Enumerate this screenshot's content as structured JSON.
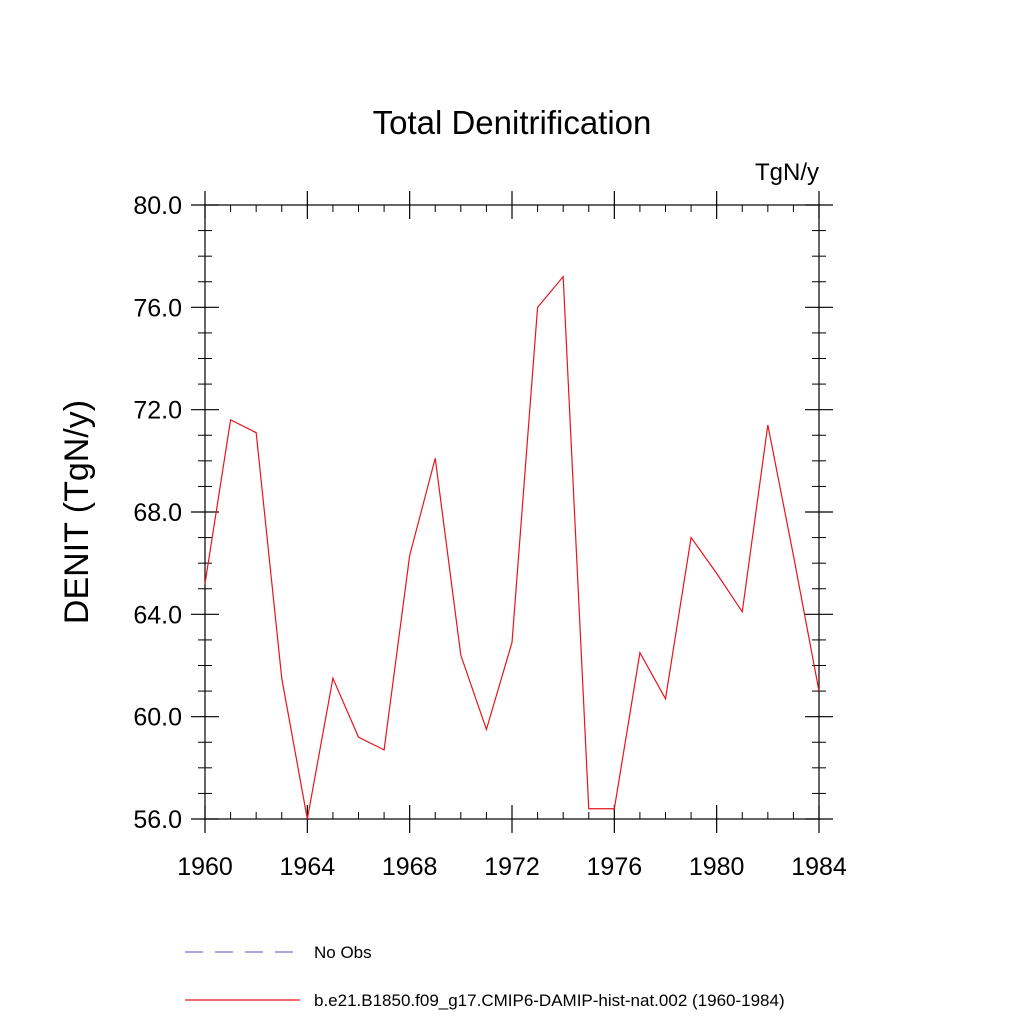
{
  "chart_data": {
    "type": "line",
    "title": "Total Denitrification",
    "units_label": "TgN/y",
    "xlabel": "",
    "ylabel": "DENIT  (TgN/y)",
    "xlim": [
      1960,
      1984
    ],
    "ylim": [
      56,
      80
    ],
    "x_ticks": [
      1960,
      1964,
      1968,
      1972,
      1976,
      1980,
      1984
    ],
    "x_tick_labels": [
      "1960",
      "1964",
      "1968",
      "1972",
      "1976",
      "1980",
      "1984"
    ],
    "y_ticks": [
      56,
      60,
      64,
      68,
      72,
      76,
      80
    ],
    "y_tick_labels": [
      "56.0",
      "60.0",
      "64.0",
      "68.0",
      "72.0",
      "76.0",
      "80.0"
    ],
    "grid": false,
    "legend_placement": "bottom",
    "series": [
      {
        "name": "No Obs",
        "color": "#7b72c8",
        "dashed": true,
        "x": [],
        "y": []
      },
      {
        "name": "b.e21.B1850.f09_g17.CMIP6-DAMIP-hist-nat.002 (1960-1984)",
        "color": "#e8141b",
        "dashed": false,
        "x": [
          1960,
          1961,
          1962,
          1963,
          1964,
          1965,
          1966,
          1967,
          1968,
          1969,
          1970,
          1971,
          1972,
          1973,
          1974,
          1975,
          1976,
          1977,
          1978,
          1979,
          1980,
          1981,
          1982,
          1983,
          1984
        ],
        "y": [
          65.2,
          71.6,
          71.1,
          61.5,
          56.0,
          61.5,
          59.2,
          58.7,
          66.3,
          70.1,
          62.4,
          59.5,
          62.9,
          76.0,
          77.2,
          56.4,
          56.4,
          62.5,
          60.7,
          67.0,
          65.6,
          64.1,
          71.4,
          66.3,
          61.0
        ]
      }
    ]
  }
}
